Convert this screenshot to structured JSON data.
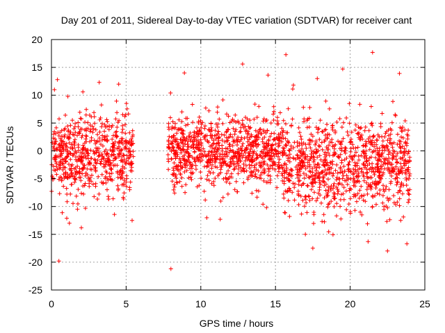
{
  "chart_data": {
    "type": "scatter",
    "title": "Day 201 of 2011, Sidereal Day-to-day VTEC variation (SDTVAR) for receiver cant",
    "xlabel": "GPS time / hours",
    "ylabel": "SDTVAR / TECUs",
    "xlim": [
      0,
      25
    ],
    "ylim": [
      -25,
      20
    ],
    "xticks": [
      0,
      5,
      10,
      15,
      20,
      25
    ],
    "yticks": [
      -25,
      -20,
      -15,
      -10,
      -5,
      0,
      5,
      10,
      15,
      20
    ],
    "xtick_labels": [
      "0",
      "5",
      "10",
      "15",
      "20",
      "25"
    ],
    "ytick_labels": [
      "-25",
      "-20",
      "-15",
      "-10",
      "-5",
      "0",
      "5",
      "10",
      "15",
      "20"
    ],
    "grid": true,
    "marker": "+",
    "color": "#ff0000",
    "series": [
      {
        "name": "SDTVAR",
        "description": "dense scatter of receiver cant VTEC variation",
        "clusters": [
          {
            "x_range": [
              0.0,
              5.5
            ],
            "y_center": -1.0,
            "y_spread": 3.5
          },
          {
            "x_range": [
              7.8,
              15.5
            ],
            "y_center": 0.0,
            "y_spread": 3.2
          },
          {
            "x_range": [
              15.5,
              24.0
            ],
            "y_center": -2.5,
            "y_spread": 4.0
          }
        ],
        "outliers": [
          {
            "x": 0.5,
            "y": -19.8
          },
          {
            "x": 8.0,
            "y": -21.2
          },
          {
            "x": 15.7,
            "y": 17.3
          },
          {
            "x": 21.5,
            "y": 17.7
          },
          {
            "x": 12.8,
            "y": 15.6
          },
          {
            "x": 19.5,
            "y": 14.7
          },
          {
            "x": 23.3,
            "y": 13.9
          },
          {
            "x": 8.9,
            "y": 14.0
          },
          {
            "x": 14.5,
            "y": 13.6
          },
          {
            "x": 0.4,
            "y": 12.8
          },
          {
            "x": 3.2,
            "y": 12.3
          },
          {
            "x": 4.5,
            "y": 12.0
          },
          {
            "x": 0.2,
            "y": 11.0
          },
          {
            "x": 1.2,
            "y": -13.0
          },
          {
            "x": 2.0,
            "y": -13.8
          },
          {
            "x": 5.4,
            "y": -12.5
          },
          {
            "x": 17.5,
            "y": -17.5
          },
          {
            "x": 22.5,
            "y": -18.0
          },
          {
            "x": 23.8,
            "y": -16.7
          },
          {
            "x": 17.0,
            "y": -15.0
          },
          {
            "x": 21.2,
            "y": -16.3
          },
          {
            "x": 16.2,
            "y": 11.8
          },
          {
            "x": 17.8,
            "y": 13.0
          },
          {
            "x": 11.3,
            "y": -12.3
          },
          {
            "x": 14.4,
            "y": -10.2
          }
        ]
      }
    ]
  }
}
